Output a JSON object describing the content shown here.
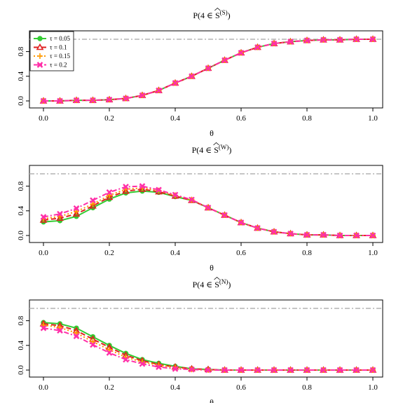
{
  "legend": {
    "entries": [
      {
        "label": "τ = 0.05",
        "color": "#33cc33",
        "marker": "circle",
        "dash": "solid"
      },
      {
        "label": "τ = 0.1",
        "color": "#e02020",
        "marker": "triangle",
        "dash": "dashed"
      },
      {
        "label": "τ = 0.15",
        "color": "#ff9900",
        "marker": "plus",
        "dash": "dotted"
      },
      {
        "label": "τ = 0.2",
        "color": "#ff2fa8",
        "marker": "cross",
        "dash": "dotdash"
      }
    ]
  },
  "chart_data": [
    {
      "type": "line",
      "title_prefix": "P(4 ∈ ",
      "title_S": "S",
      "title_sup": "(S)",
      "title_suffix": ")",
      "xlabel": "θ",
      "xlim": [
        0,
        1
      ],
      "ylim": [
        0,
        1
      ],
      "xticks": [
        "0.0",
        "0.2",
        "0.4",
        "0.6",
        "0.8",
        "1.0"
      ],
      "yticks": [
        "0.0",
        "0.4",
        "0.8"
      ],
      "reference_line": 1.0,
      "show_legend": true,
      "x": [
        0,
        0.05,
        0.1,
        0.15,
        0.2,
        0.25,
        0.3,
        0.35,
        0.4,
        0.45,
        0.5,
        0.55,
        0.6,
        0.65,
        0.7,
        0.75,
        0.8,
        0.85,
        0.9,
        0.95,
        1.0
      ],
      "series": [
        {
          "name": "τ = 0.05",
          "values": [
            0.0,
            0.0,
            0.01,
            0.01,
            0.02,
            0.04,
            0.09,
            0.17,
            0.29,
            0.4,
            0.53,
            0.66,
            0.78,
            0.87,
            0.93,
            0.96,
            0.98,
            0.99,
            0.99,
            1.0,
            1.0
          ]
        },
        {
          "name": "τ = 0.1",
          "values": [
            0.0,
            0.0,
            0.01,
            0.01,
            0.02,
            0.04,
            0.09,
            0.17,
            0.29,
            0.4,
            0.53,
            0.66,
            0.78,
            0.87,
            0.93,
            0.96,
            0.98,
            0.99,
            0.99,
            1.0,
            1.0
          ]
        },
        {
          "name": "τ = 0.15",
          "values": [
            0.0,
            0.0,
            0.01,
            0.01,
            0.02,
            0.04,
            0.09,
            0.17,
            0.29,
            0.4,
            0.53,
            0.66,
            0.78,
            0.87,
            0.93,
            0.96,
            0.98,
            0.99,
            0.99,
            1.0,
            1.0
          ]
        },
        {
          "name": "τ = 0.2",
          "values": [
            0.0,
            0.0,
            0.01,
            0.01,
            0.02,
            0.04,
            0.09,
            0.17,
            0.29,
            0.4,
            0.53,
            0.66,
            0.78,
            0.87,
            0.93,
            0.96,
            0.98,
            0.99,
            0.99,
            1.0,
            1.0
          ]
        }
      ]
    },
    {
      "type": "line",
      "title_prefix": "P(4 ∈ ",
      "title_S": "S",
      "title_sup": "(W)",
      "title_suffix": ")",
      "xlabel": "θ",
      "xlim": [
        0,
        1
      ],
      "ylim": [
        0,
        1
      ],
      "xticks": [
        "0.0",
        "0.2",
        "0.4",
        "0.6",
        "0.8",
        "1.0"
      ],
      "yticks": [
        "0.0",
        "0.4",
        "0.8"
      ],
      "reference_line": 1.0,
      "show_legend": false,
      "x": [
        0,
        0.05,
        0.1,
        0.15,
        0.2,
        0.25,
        0.3,
        0.35,
        0.4,
        0.45,
        0.5,
        0.55,
        0.6,
        0.65,
        0.7,
        0.75,
        0.8,
        0.85,
        0.9,
        0.95,
        1.0
      ],
      "series": [
        {
          "name": "τ = 0.05",
          "values": [
            0.22,
            0.24,
            0.31,
            0.45,
            0.59,
            0.69,
            0.72,
            0.7,
            0.63,
            0.57,
            0.45,
            0.33,
            0.21,
            0.12,
            0.06,
            0.03,
            0.01,
            0.01,
            0.0,
            0.0,
            0.0
          ]
        },
        {
          "name": "τ = 0.1",
          "values": [
            0.25,
            0.28,
            0.35,
            0.48,
            0.62,
            0.72,
            0.75,
            0.71,
            0.64,
            0.57,
            0.45,
            0.33,
            0.21,
            0.12,
            0.06,
            0.03,
            0.01,
            0.01,
            0.0,
            0.0,
            0.0
          ]
        },
        {
          "name": "τ = 0.15",
          "values": [
            0.27,
            0.31,
            0.39,
            0.51,
            0.65,
            0.75,
            0.77,
            0.73,
            0.65,
            0.58,
            0.45,
            0.33,
            0.21,
            0.12,
            0.06,
            0.03,
            0.01,
            0.01,
            0.0,
            0.0,
            0.0
          ]
        },
        {
          "name": "τ = 0.2",
          "values": [
            0.3,
            0.35,
            0.44,
            0.57,
            0.7,
            0.79,
            0.8,
            0.74,
            0.66,
            0.58,
            0.45,
            0.33,
            0.21,
            0.12,
            0.06,
            0.03,
            0.01,
            0.01,
            0.0,
            0.0,
            0.0
          ]
        }
      ]
    },
    {
      "type": "line",
      "title_prefix": "P(4 ∈ ",
      "title_S": "S",
      "title_sup": "(N)",
      "title_suffix": ")",
      "xlabel": "θ",
      "xlim": [
        0,
        1
      ],
      "ylim": [
        0,
        1
      ],
      "xticks": [
        "0.0",
        "0.2",
        "0.4",
        "0.6",
        "0.8",
        "1.0"
      ],
      "yticks": [
        "0.0",
        "0.4",
        "0.8"
      ],
      "reference_line": 1.0,
      "show_legend": false,
      "x": [
        0,
        0.05,
        0.1,
        0.15,
        0.2,
        0.25,
        0.3,
        0.35,
        0.4,
        0.45,
        0.5,
        0.55,
        0.6,
        0.65,
        0.7,
        0.75,
        0.8,
        0.85,
        0.9,
        0.95,
        1.0
      ],
      "series": [
        {
          "name": "τ = 0.05",
          "values": [
            0.77,
            0.75,
            0.68,
            0.54,
            0.4,
            0.27,
            0.17,
            0.11,
            0.06,
            0.02,
            0.01,
            0.0,
            0.0,
            0.0,
            0.0,
            0.0,
            0.0,
            0.0,
            0.0,
            0.0,
            0.0
          ]
        },
        {
          "name": "τ = 0.1",
          "values": [
            0.75,
            0.72,
            0.64,
            0.5,
            0.37,
            0.24,
            0.15,
            0.09,
            0.05,
            0.02,
            0.01,
            0.0,
            0.0,
            0.0,
            0.0,
            0.0,
            0.0,
            0.0,
            0.0,
            0.0,
            0.0
          ]
        },
        {
          "name": "τ = 0.15",
          "values": [
            0.73,
            0.69,
            0.6,
            0.46,
            0.33,
            0.21,
            0.13,
            0.08,
            0.04,
            0.01,
            0.0,
            0.0,
            0.0,
            0.0,
            0.0,
            0.0,
            0.0,
            0.0,
            0.0,
            0.0,
            0.0
          ]
        },
        {
          "name": "τ = 0.2",
          "values": [
            0.68,
            0.64,
            0.55,
            0.41,
            0.28,
            0.17,
            0.1,
            0.05,
            0.02,
            0.01,
            0.0,
            0.0,
            0.0,
            0.0,
            0.0,
            0.0,
            0.0,
            0.0,
            0.0,
            0.0,
            0.0
          ]
        }
      ]
    }
  ]
}
